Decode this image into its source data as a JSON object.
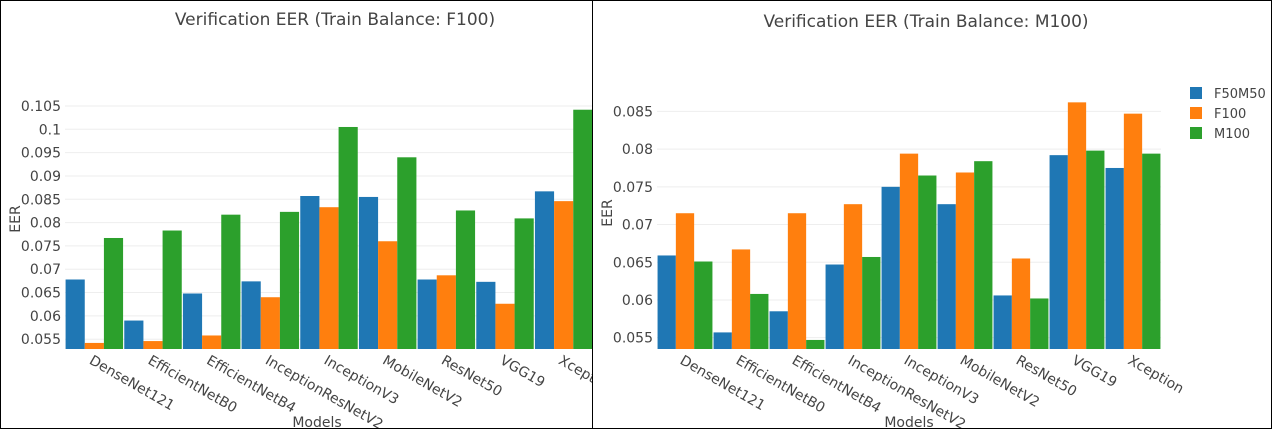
{
  "colors": {
    "F50M50": "#1f77b4",
    "F100": "#ff7f0e",
    "M100": "#2ca02c"
  },
  "chart_data": [
    {
      "type": "bar",
      "title": "Verification EER (Train Balance: F100)",
      "xlabel": "Models",
      "ylabel": "EER",
      "categories": [
        "DenseNet121",
        "EfficientNetB0",
        "EfficientNetB4",
        "InceptionResNetV2",
        "InceptionV3",
        "MobileNetV2",
        "ResNet50",
        "VGG19",
        "Xception"
      ],
      "series": [
        {
          "name": "F50M50",
          "values": [
            0.0678,
            0.059,
            0.0648,
            0.0674,
            0.0857,
            0.0855,
            0.0678,
            0.0673,
            0.0867
          ]
        },
        {
          "name": "F100",
          "values": [
            0.0542,
            0.0546,
            0.0558,
            0.064,
            0.0833,
            0.076,
            0.0687,
            0.0626,
            0.0846
          ]
        },
        {
          "name": "M100",
          "values": [
            0.0767,
            0.0783,
            0.0817,
            0.0823,
            0.1005,
            0.094,
            0.0826,
            0.0809,
            0.1042
          ]
        }
      ],
      "ylim": [
        0.0529,
        0.1095
      ],
      "yticks": [
        0.055,
        0.06,
        0.065,
        0.07,
        0.075,
        0.08,
        0.085,
        0.09,
        0.095,
        0.1,
        0.105
      ],
      "ytick_labels": [
        "0.055",
        "0.06",
        "0.065",
        "0.07",
        "0.075",
        "0.08",
        "0.085",
        "0.09",
        "0.095",
        "0.1",
        "0.105"
      ],
      "grid": true,
      "legend": "none"
    },
    {
      "type": "bar",
      "title": "Verification EER (Train Balance: M100)",
      "xlabel": "Models",
      "ylabel": "EER",
      "categories": [
        "DenseNet121",
        "EfficientNetB0",
        "EfficientNetB4",
        "InceptionResNetV2",
        "InceptionV3",
        "MobileNetV2",
        "ResNet50",
        "VGG19",
        "Xception"
      ],
      "series": [
        {
          "name": "F50M50",
          "values": [
            0.0659,
            0.0557,
            0.0585,
            0.0647,
            0.075,
            0.0727,
            0.0606,
            0.0792,
            0.0775
          ]
        },
        {
          "name": "F100",
          "values": [
            0.0715,
            0.0667,
            0.0715,
            0.0727,
            0.0794,
            0.0769,
            0.0655,
            0.0862,
            0.0847
          ]
        },
        {
          "name": "M100",
          "values": [
            0.0651,
            0.0608,
            0.0547,
            0.0657,
            0.0765,
            0.0784,
            0.0602,
            0.0798,
            0.0794
          ]
        }
      ],
      "ylim": [
        0.0535,
        0.0885
      ],
      "yticks": [
        0.055,
        0.06,
        0.065,
        0.07,
        0.075,
        0.08,
        0.085
      ],
      "ytick_labels": [
        "0.055",
        "0.06",
        "0.065",
        "0.07",
        "0.075",
        "0.08",
        "0.085"
      ],
      "grid": true,
      "legend": "top-right"
    }
  ]
}
